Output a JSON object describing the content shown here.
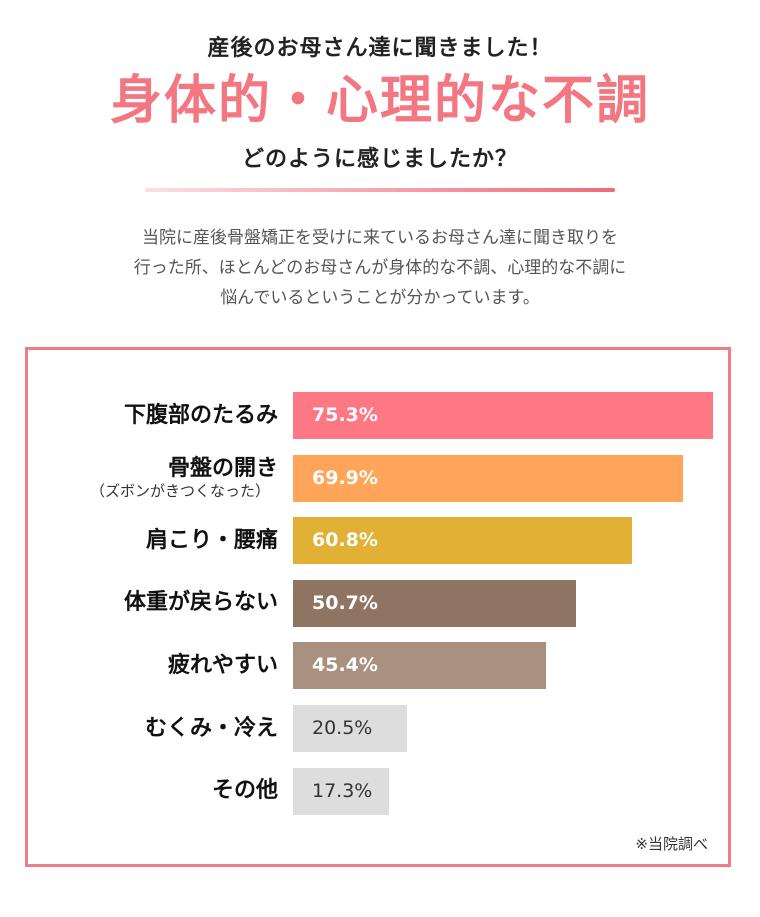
{
  "header": {
    "subtitle": "産後のお母さん達に聞きました！",
    "title": "身体的・心理的な不調",
    "question": "どのように感じましたか？"
  },
  "intro": {
    "lines": [
      "当院に産後骨盤矯正を受けに来ているお母さん達に聞き取りを",
      "行った所、ほとんどのお母さんが身体的な不調、心理的な不調に",
      "悩んでいるということが分かっています。"
    ]
  },
  "colors": {
    "accent": "#f37782",
    "divider_start": "#fbe0e3",
    "divider_end": "#ee6a7a",
    "panel_border": "#f07c86"
  },
  "chart_data": {
    "type": "bar",
    "orientation": "horizontal",
    "categories": [
      "下腹部のたるみ",
      "骨盤の開き（ズボンがきつくなった）",
      "肩こり・腰痛",
      "体重が戻らない",
      "疲れやすい",
      "むくみ・冷え",
      "その他"
    ],
    "values": [
      75.3,
      69.9,
      60.8,
      50.7,
      45.4,
      20.5,
      17.3
    ],
    "unit": "%",
    "xlim": [
      0,
      75.3
    ],
    "grid": false,
    "legend": "none",
    "items": [
      {
        "label": "下腹部のたるみ",
        "sub_label": "",
        "value": 75.3,
        "value_text": "75.3%",
        "color": "#fd7784",
        "text_color": "#ffffff",
        "bold": true
      },
      {
        "label": "骨盤の開き",
        "sub_label": "（ズボンがきつくなった）",
        "value": 69.9,
        "value_text": "69.9%",
        "color": "#fea559",
        "text_color": "#ffffff",
        "bold": true
      },
      {
        "label": "肩こり・腰痛",
        "sub_label": "",
        "value": 60.8,
        "value_text": "60.8%",
        "color": "#e2b035",
        "text_color": "#ffffff",
        "bold": true
      },
      {
        "label": "体重が戻らない",
        "sub_label": "",
        "value": 50.7,
        "value_text": "50.7%",
        "color": "#8e7461",
        "text_color": "#ffffff",
        "bold": true
      },
      {
        "label": "疲れやすい",
        "sub_label": "",
        "value": 45.4,
        "value_text": "45.4%",
        "color": "#aa9080",
        "text_color": "#ffffff",
        "bold": true
      },
      {
        "label": "むくみ・冷え",
        "sub_label": "",
        "value": 20.5,
        "value_text": "20.5%",
        "color": "#dddddd",
        "text_color": "#333333",
        "bold": false
      },
      {
        "label": "その他",
        "sub_label": "",
        "value": 17.3,
        "value_text": "17.3%",
        "color": "#dddddd",
        "text_color": "#333333",
        "bold": false
      }
    ],
    "source_note": "※当院調べ"
  }
}
